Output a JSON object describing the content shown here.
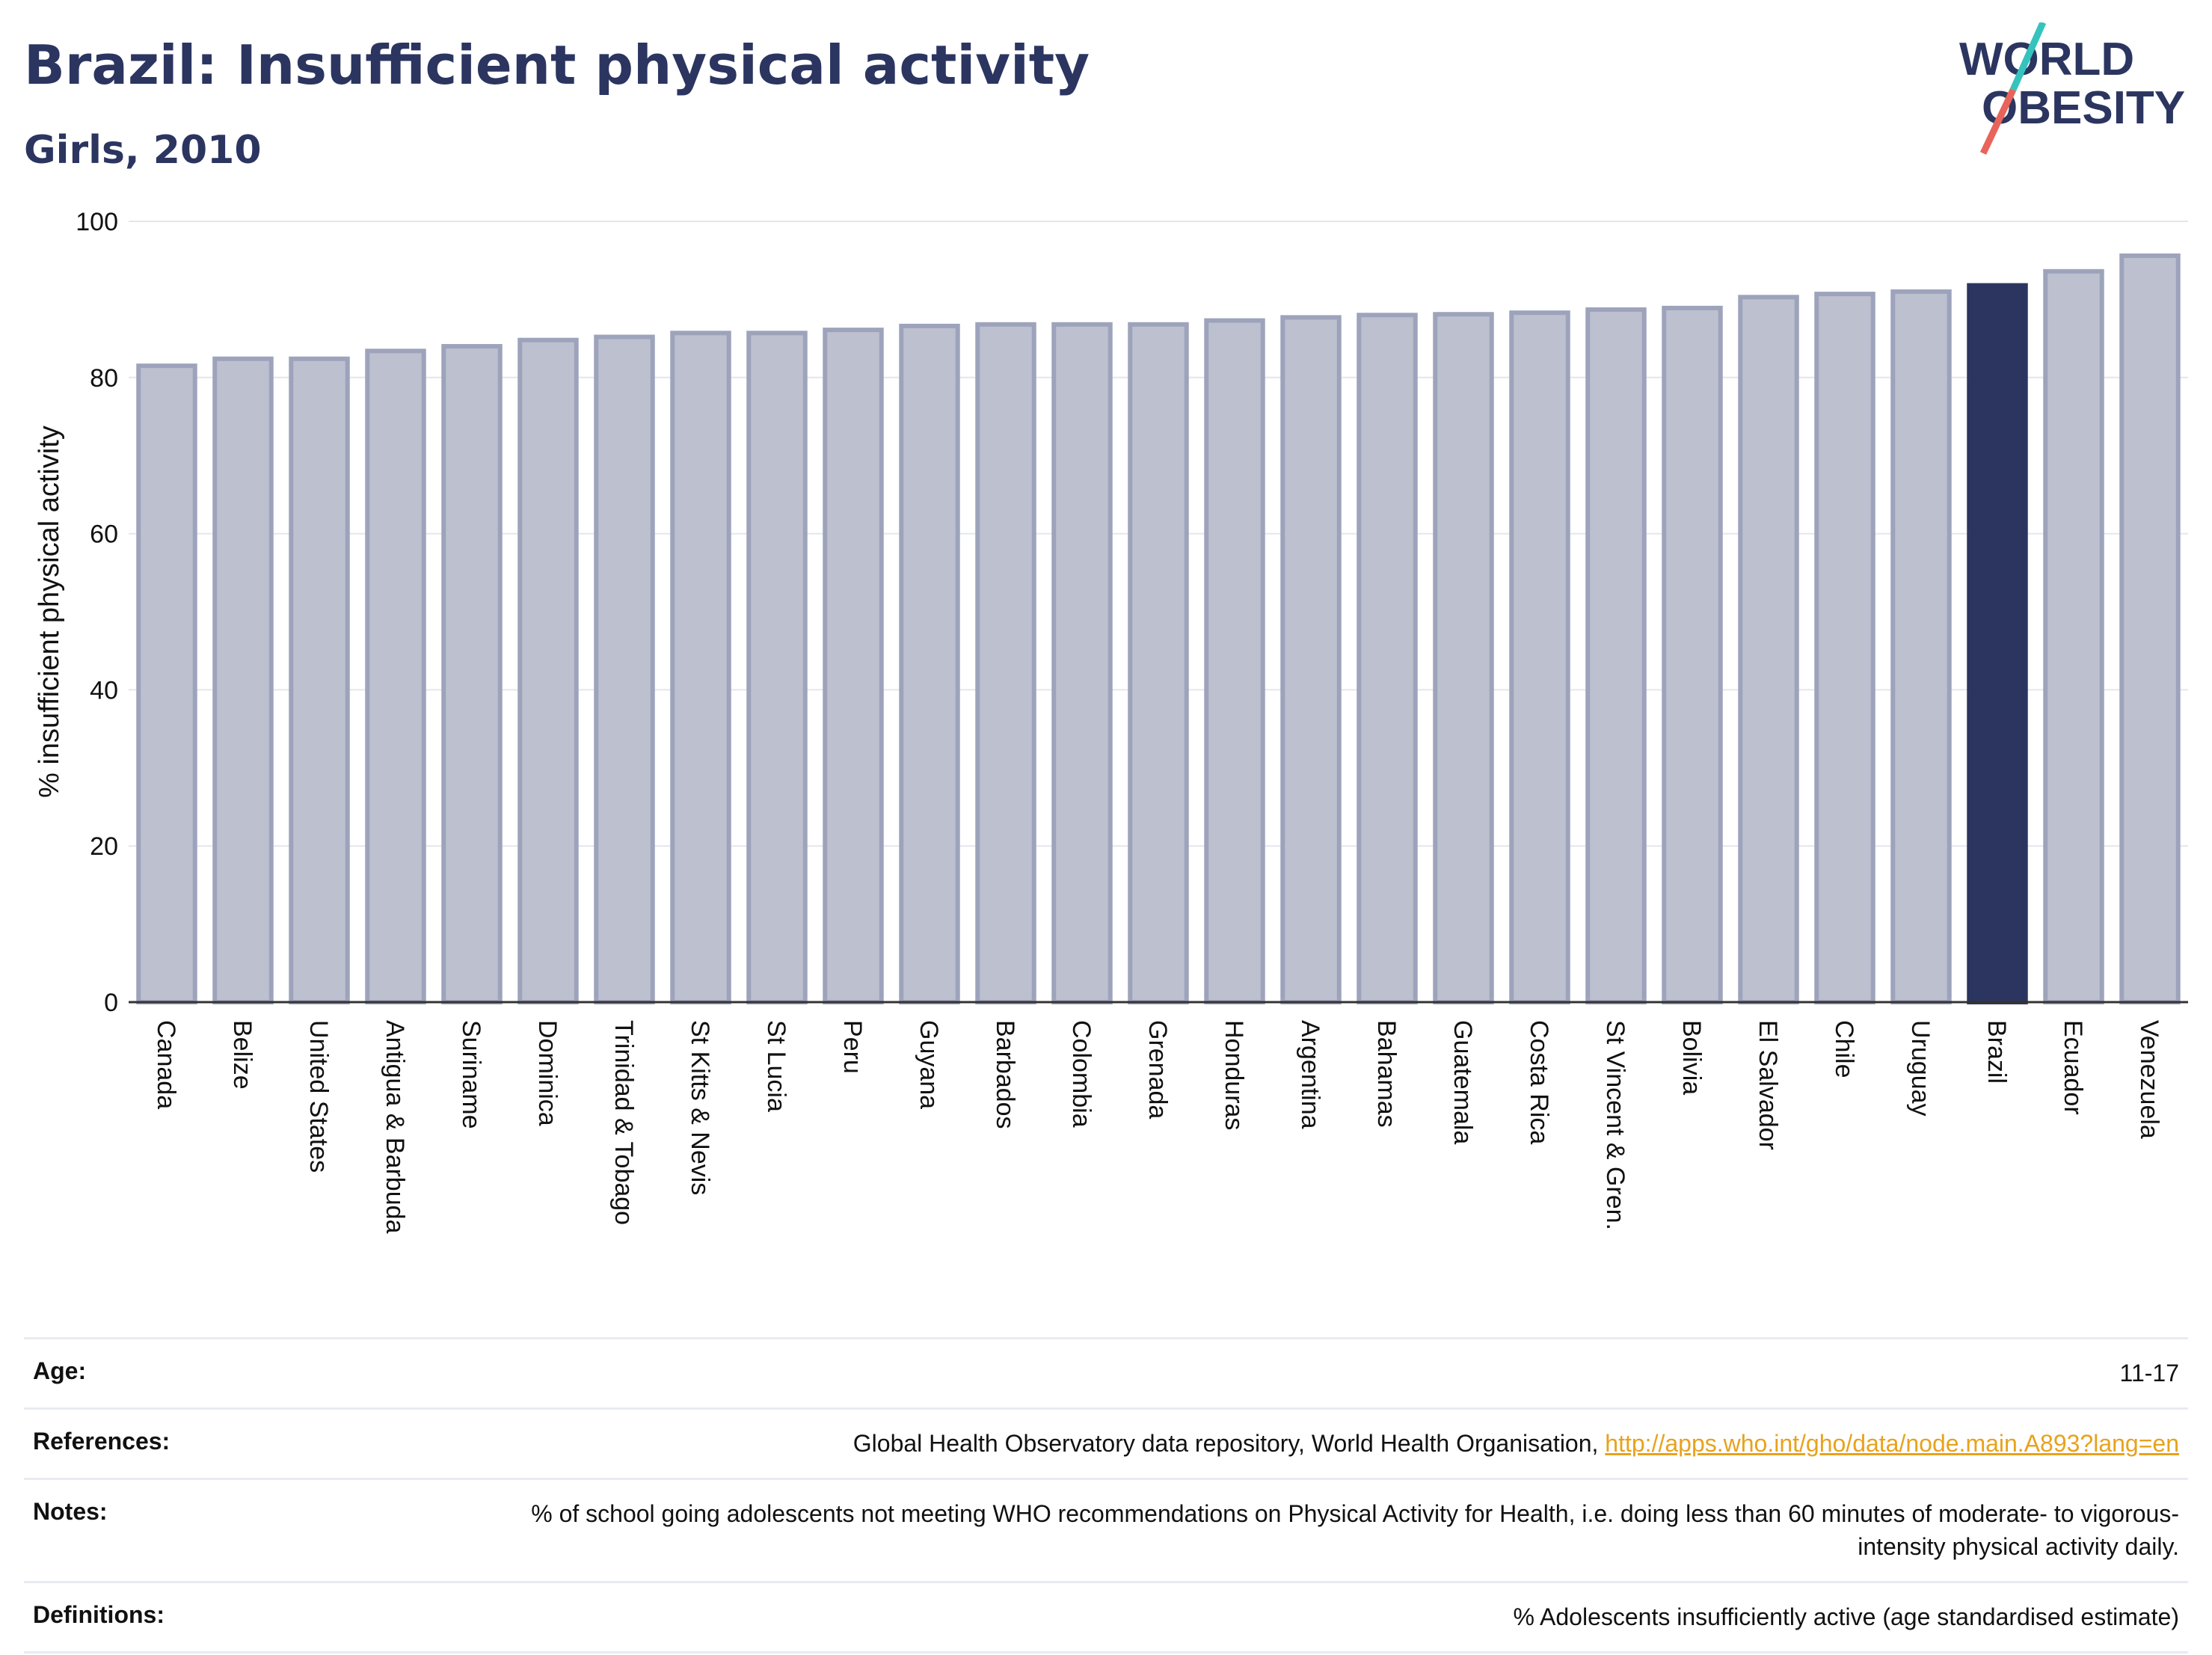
{
  "header": {
    "title": "Brazil: Insufficient physical activity",
    "subtitle": "Girls, 2010"
  },
  "logo": {
    "line1": "WORLD",
    "line2": "OBESITY",
    "colors": {
      "text": "#2b3560",
      "slash_teal": "#35c3bd",
      "slash_red": "#e8645a"
    }
  },
  "chart_data": {
    "type": "bar",
    "ylabel": "% insufficient physical activity",
    "xlabel": "",
    "ylim": [
      0,
      100
    ],
    "yticks": [
      0,
      20,
      40,
      60,
      80,
      100
    ],
    "grid": true,
    "categories": [
      "Canada",
      "Belize",
      "United States",
      "Antigua & Barbuda",
      "Suriname",
      "Dominica",
      "Trinidad & Tobago",
      "St Kitts & Nevis",
      "St Lucia",
      "Peru",
      "Guyana",
      "Barbados",
      "Colombia",
      "Grenada",
      "Honduras",
      "Argentina",
      "Bahamas",
      "Guatemala",
      "Costa Rica",
      "St Vincent & Gren.",
      "Bolivia",
      "El Salvador",
      "Chile",
      "Uruguay",
      "Brazil",
      "Ecuador",
      "Venezuela"
    ],
    "values": [
      81.5,
      82.4,
      82.4,
      83.4,
      84.0,
      84.8,
      85.2,
      85.7,
      85.7,
      86.1,
      86.6,
      86.8,
      86.8,
      86.8,
      87.3,
      87.7,
      88.0,
      88.1,
      88.3,
      88.7,
      88.9,
      90.3,
      90.7,
      91.0,
      91.8,
      93.6,
      95.6
    ],
    "highlight": "Brazil",
    "colors": {
      "bar": "#bdc0cf",
      "bar_edge": "#9ea3bc",
      "highlight": "#2b3560"
    }
  },
  "info": {
    "rows": [
      {
        "label": "Age:",
        "value": "11-17"
      },
      {
        "label": "References:",
        "value": "Global Health Observatory data repository, World Health Organisation, ",
        "link": "http://apps.who.int/gho/data/node.main.A893?lang=en"
      },
      {
        "label": "Notes:",
        "value": "% of school going adolescents not meeting WHO recommendations on Physical Activity for Health, i.e. doing less than 60 minutes of moderate- to vigorous-intensity physical activity daily."
      },
      {
        "label": "Definitions:",
        "value": "% Adolescents insufficiently active (age standardised estimate)"
      }
    ]
  }
}
